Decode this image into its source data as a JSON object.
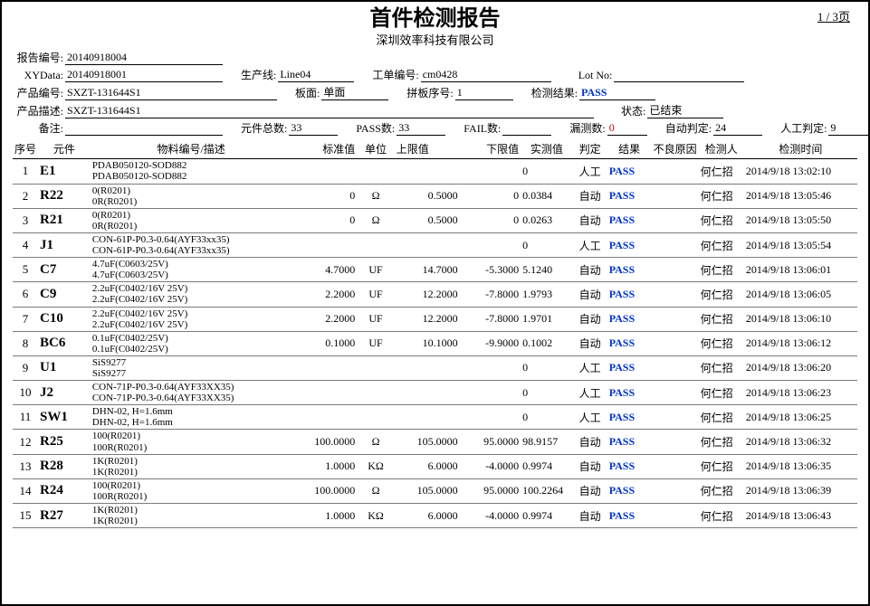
{
  "page": {
    "title": "首件检测报告",
    "company": "深圳效率科技有限公司",
    "num": "1 / 3页"
  },
  "info": {
    "reportNo": {
      "label": "报告编号:",
      "value": "20140918004"
    },
    "xyData": {
      "label": "XYData:",
      "value": "20140918001"
    },
    "line": {
      "label": "生产线:",
      "value": "Line04"
    },
    "wo": {
      "label": "工单编号:",
      "value": "cm0428"
    },
    "lot": {
      "label": "Lot No:",
      "value": ""
    },
    "prodNo": {
      "label": "产品编号:",
      "value": "SXZT-131644S1"
    },
    "side": {
      "label": "板面:",
      "value": "单面"
    },
    "panel": {
      "label": "拼板序号:",
      "value": "1"
    },
    "result": {
      "label": "检测结果:",
      "value": "PASS"
    },
    "prodDesc": {
      "label": "产品描述:",
      "value": "SXZT-131644S1"
    },
    "status": {
      "label": "状态:",
      "value": "已结束"
    },
    "remark": {
      "label": "备注:",
      "value": ""
    },
    "partTotal": {
      "label": "元件总数:",
      "value": "33"
    },
    "passCnt": {
      "label": "PASS数:",
      "value": "33"
    },
    "failCnt": {
      "label": "FAIL数:",
      "value": ""
    },
    "misCnt": {
      "label": "漏测数:",
      "value": "0"
    },
    "autoJudge": {
      "label": "自动判定:",
      "value": "24"
    },
    "manJudge": {
      "label": "人工判定:",
      "value": "9"
    }
  },
  "headers": {
    "idx": "序号",
    "component": "元件",
    "mat": "物料编号/描述",
    "std": "标准值",
    "unit": "单位",
    "up": "上限值",
    "low": "下限值",
    "real": "实测值",
    "judge": "判定",
    "res": "结果",
    "bad": "不良原因",
    "insp": "检测人",
    "time": "检测时间"
  },
  "rows": [
    {
      "idx": "1",
      "component": "E1",
      "mat1": "PDAB050120-SOD882",
      "mat2": "PDAB050120-SOD882",
      "std": "",
      "unit": "",
      "up": "",
      "low": "",
      "real": "0",
      "judge": "人工",
      "res": "PASS",
      "insp": "何仁招",
      "time": "2014/9/18 13:02:10"
    },
    {
      "idx": "2",
      "component": "R22",
      "mat1": "0(R0201)",
      "mat2": "0R(R0201)",
      "std": "0",
      "unit": "Ω",
      "up": "0.5000",
      "low": "0",
      "real": "0.0384",
      "judge": "自动",
      "res": "PASS",
      "insp": "何仁招",
      "time": "2014/9/18 13:05:46"
    },
    {
      "idx": "3",
      "component": "R21",
      "mat1": "0(R0201)",
      "mat2": "0R(R0201)",
      "std": "0",
      "unit": "Ω",
      "up": "0.5000",
      "low": "0",
      "real": "0.0263",
      "judge": "自动",
      "res": "PASS",
      "insp": "何仁招",
      "time": "2014/9/18 13:05:50"
    },
    {
      "idx": "4",
      "component": "J1",
      "mat1": "CON-61P-P0.3-0.64(AYF33xx35)",
      "mat2": "CON-61P-P0.3-0.64(AYF33xx35)",
      "std": "",
      "unit": "",
      "up": "",
      "low": "",
      "real": "0",
      "judge": "人工",
      "res": "PASS",
      "insp": "何仁招",
      "time": "2014/9/18 13:05:54"
    },
    {
      "idx": "5",
      "component": "C7",
      "mat1": "4.7uF(C0603/25V)",
      "mat2": "4.7uF(C0603/25V)",
      "std": "4.7000",
      "unit": "UF",
      "up": "14.7000",
      "low": "-5.3000",
      "real": "5.1240",
      "judge": "自动",
      "res": "PASS",
      "insp": "何仁招",
      "time": "2014/9/18 13:06:01"
    },
    {
      "idx": "6",
      "component": "C9",
      "mat1": "2.2uF(C0402/16V  25V)",
      "mat2": "2.2uF(C0402/16V  25V)",
      "std": "2.2000",
      "unit": "UF",
      "up": "12.2000",
      "low": "-7.8000",
      "real": "1.9793",
      "judge": "自动",
      "res": "PASS",
      "insp": "何仁招",
      "time": "2014/9/18 13:06:05"
    },
    {
      "idx": "7",
      "component": "C10",
      "mat1": "2.2uF(C0402/16V  25V)",
      "mat2": "2.2uF(C0402/16V  25V)",
      "std": "2.2000",
      "unit": "UF",
      "up": "12.2000",
      "low": "-7.8000",
      "real": "1.9701",
      "judge": "自动",
      "res": "PASS",
      "insp": "何仁招",
      "time": "2014/9/18 13:06:10"
    },
    {
      "idx": "8",
      "component": "BC6",
      "mat1": "0.1uF(C0402/25V)",
      "mat2": "0.1uF(C0402/25V)",
      "std": "0.1000",
      "unit": "UF",
      "up": "10.1000",
      "low": "-9.9000",
      "real": "0.1002",
      "judge": "自动",
      "res": "PASS",
      "insp": "何仁招",
      "time": "2014/9/18 13:06:12"
    },
    {
      "idx": "9",
      "component": "U1",
      "mat1": "SiS9277",
      "mat2": "SiS9277",
      "std": "",
      "unit": "",
      "up": "",
      "low": "",
      "real": "0",
      "judge": "人工",
      "res": "PASS",
      "insp": "何仁招",
      "time": "2014/9/18 13:06:20"
    },
    {
      "idx": "10",
      "component": "J2",
      "mat1": "CON-71P-P0.3-0.64(AYF33XX35)",
      "mat2": "CON-71P-P0.3-0.64(AYF33XX35)",
      "std": "",
      "unit": "",
      "up": "",
      "low": "",
      "real": "0",
      "judge": "人工",
      "res": "PASS",
      "insp": "何仁招",
      "time": "2014/9/18 13:06:23"
    },
    {
      "idx": "11",
      "component": "SW1",
      "mat1": "DHN-02, H=1.6mm",
      "mat2": "DHN-02, H=1.6mm",
      "std": "",
      "unit": "",
      "up": "",
      "low": "",
      "real": "0",
      "judge": "人工",
      "res": "PASS",
      "insp": "何仁招",
      "time": "2014/9/18 13:06:25"
    },
    {
      "idx": "12",
      "component": "R25",
      "mat1": "100(R0201)",
      "mat2": "100R(R0201)",
      "std": "100.0000",
      "unit": "Ω",
      "up": "105.0000",
      "low": "95.0000",
      "real": "98.9157",
      "judge": "自动",
      "res": "PASS",
      "insp": "何仁招",
      "time": "2014/9/18 13:06:32"
    },
    {
      "idx": "13",
      "component": "R28",
      "mat1": "1K(R0201)",
      "mat2": "1K(R0201)",
      "std": "1.0000",
      "unit": "KΩ",
      "up": "6.0000",
      "low": "-4.0000",
      "real": "0.9974",
      "judge": "自动",
      "res": "PASS",
      "insp": "何仁招",
      "time": "2014/9/18 13:06:35"
    },
    {
      "idx": "14",
      "component": "R24",
      "mat1": "100(R0201)",
      "mat2": "100R(R0201)",
      "std": "100.0000",
      "unit": "Ω",
      "up": "105.0000",
      "low": "95.0000",
      "real": "100.2264",
      "judge": "自动",
      "res": "PASS",
      "insp": "何仁招",
      "time": "2014/9/18 13:06:39"
    },
    {
      "idx": "15",
      "component": "R27",
      "mat1": "1K(R0201)",
      "mat2": "1K(R0201)",
      "std": "1.0000",
      "unit": "KΩ",
      "up": "6.0000",
      "low": "-4.0000",
      "real": "0.9974",
      "judge": "自动",
      "res": "PASS",
      "insp": "何仁招",
      "time": "2014/9/18 13:06:43"
    }
  ]
}
